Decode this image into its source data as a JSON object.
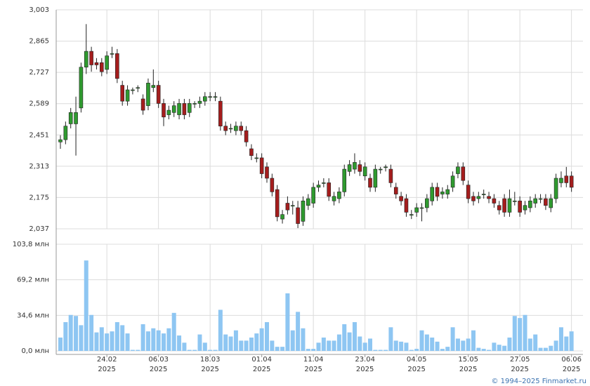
{
  "chart_data": [
    {
      "type": "candlestick",
      "ylim": [
        2.037,
        3.003
      ],
      "yticks": [
        {
          "value": 2.037,
          "label": "2,037"
        },
        {
          "value": 2.175,
          "label": "2,175"
        },
        {
          "value": 2.313,
          "label": "2,313"
        },
        {
          "value": 2.451,
          "label": "2,451"
        },
        {
          "value": 2.589,
          "label": "2,589"
        },
        {
          "value": 2.727,
          "label": "2,727"
        },
        {
          "value": 2.865,
          "label": "2,865"
        },
        {
          "value": 3.003,
          "label": "3,003"
        }
      ],
      "grid": true,
      "up_color": "#2f9a2f",
      "down_color": "#a51d1d",
      "open": [
        2.42,
        2.43,
        2.5,
        2.5,
        2.57,
        2.75,
        2.82,
        2.77,
        2.77,
        2.74,
        2.81,
        2.81,
        2.67,
        2.6,
        2.65,
        2.66,
        2.61,
        2.58,
        2.66,
        2.67,
        2.59,
        2.54,
        2.55,
        2.54,
        2.59,
        2.55,
        2.59,
        2.59,
        2.6,
        2.62,
        2.62,
        2.6,
        2.49,
        2.48,
        2.47,
        2.49,
        2.47,
        2.39,
        2.35,
        2.35,
        2.31,
        2.26,
        2.21,
        2.08,
        2.15,
        2.14,
        2.13,
        2.07,
        2.14,
        2.15,
        2.22,
        2.24,
        2.24,
        2.16,
        2.17,
        2.2,
        2.29,
        2.3,
        2.32,
        2.27,
        2.26,
        2.22,
        2.3,
        2.31,
        2.3,
        2.22,
        2.18,
        2.17,
        2.1,
        2.11,
        2.13,
        2.13,
        2.16,
        2.22,
        2.19,
        2.19,
        2.22,
        2.28,
        2.31,
        2.23,
        2.18,
        2.17,
        2.19,
        2.18,
        2.17,
        2.14,
        2.17,
        2.11,
        2.16,
        2.16,
        2.12,
        2.13,
        2.15,
        2.17,
        2.17,
        2.13,
        2.17,
        2.24,
        2.27,
        2.27
      ],
      "high": [
        2.45,
        2.51,
        2.57,
        2.62,
        2.77,
        2.94,
        2.84,
        2.79,
        2.79,
        2.82,
        2.84,
        2.83,
        2.69,
        2.67,
        2.66,
        2.67,
        2.63,
        2.7,
        2.74,
        2.69,
        2.61,
        2.58,
        2.6,
        2.61,
        2.61,
        2.61,
        2.6,
        2.62,
        2.64,
        2.64,
        2.64,
        2.62,
        2.51,
        2.5,
        2.51,
        2.51,
        2.49,
        2.41,
        2.37,
        2.37,
        2.33,
        2.28,
        2.23,
        2.12,
        2.18,
        2.16,
        2.16,
        2.18,
        2.19,
        2.24,
        2.25,
        2.26,
        2.26,
        2.2,
        2.22,
        2.32,
        2.34,
        2.37,
        2.34,
        2.33,
        2.28,
        2.32,
        2.31,
        2.32,
        2.32,
        2.24,
        2.2,
        2.19,
        2.12,
        2.15,
        2.15,
        2.19,
        2.24,
        2.24,
        2.22,
        2.23,
        2.29,
        2.33,
        2.33,
        2.25,
        2.2,
        2.2,
        2.21,
        2.2,
        2.19,
        2.16,
        2.19,
        2.21,
        2.2,
        2.18,
        2.16,
        2.18,
        2.19,
        2.19,
        2.19,
        2.19,
        2.28,
        2.29,
        2.31,
        2.29
      ],
      "low": [
        2.39,
        2.41,
        2.48,
        2.36,
        2.55,
        2.72,
        2.73,
        2.74,
        2.71,
        2.72,
        2.79,
        2.68,
        2.58,
        2.58,
        2.63,
        2.64,
        2.54,
        2.56,
        2.64,
        2.57,
        2.49,
        2.52,
        2.53,
        2.52,
        2.52,
        2.53,
        2.57,
        2.57,
        2.58,
        2.6,
        2.6,
        2.47,
        2.45,
        2.46,
        2.45,
        2.45,
        2.4,
        2.34,
        2.33,
        2.26,
        2.24,
        2.18,
        2.07,
        2.06,
        2.1,
        2.1,
        2.04,
        2.05,
        2.12,
        2.13,
        2.2,
        2.22,
        2.16,
        2.14,
        2.15,
        2.18,
        2.27,
        2.28,
        2.27,
        2.25,
        2.2,
        2.2,
        2.28,
        2.29,
        2.22,
        2.17,
        2.14,
        2.09,
        2.08,
        2.09,
        2.07,
        2.11,
        2.14,
        2.16,
        2.17,
        2.17,
        2.2,
        2.26,
        2.23,
        2.15,
        2.14,
        2.15,
        2.17,
        2.15,
        2.13,
        2.1,
        2.09,
        2.09,
        2.14,
        2.09,
        2.1,
        2.11,
        2.13,
        2.15,
        2.12,
        2.11,
        2.15,
        2.22,
        2.22,
        2.2
      ],
      "close": [
        2.43,
        2.49,
        2.55,
        2.55,
        2.75,
        2.82,
        2.76,
        2.76,
        2.73,
        2.8,
        2.81,
        2.7,
        2.6,
        2.65,
        2.65,
        2.66,
        2.56,
        2.68,
        2.67,
        2.59,
        2.53,
        2.56,
        2.58,
        2.59,
        2.54,
        2.59,
        2.59,
        2.6,
        2.62,
        2.62,
        2.62,
        2.49,
        2.47,
        2.48,
        2.49,
        2.47,
        2.42,
        2.36,
        2.35,
        2.28,
        2.26,
        2.2,
        2.09,
        2.1,
        2.12,
        2.14,
        2.06,
        2.16,
        2.17,
        2.22,
        2.23,
        2.24,
        2.18,
        2.18,
        2.2,
        2.3,
        2.32,
        2.33,
        2.29,
        2.31,
        2.22,
        2.3,
        2.3,
        2.31,
        2.24,
        2.19,
        2.16,
        2.11,
        2.1,
        2.13,
        2.13,
        2.17,
        2.22,
        2.18,
        2.2,
        2.21,
        2.27,
        2.31,
        2.25,
        2.17,
        2.16,
        2.18,
        2.19,
        2.17,
        2.15,
        2.12,
        2.11,
        2.17,
        2.16,
        2.11,
        2.14,
        2.16,
        2.17,
        2.17,
        2.14,
        2.17,
        2.26,
        2.26,
        2.24,
        2.22
      ]
    },
    {
      "type": "bar",
      "ylim": [
        0,
        103.8
      ],
      "yticks": [
        {
          "value": 0,
          "label": "0,0 млн"
        },
        {
          "value": 34.6,
          "label": "34,6 млн"
        },
        {
          "value": 69.2,
          "label": "69,2 млн"
        },
        {
          "value": 103.8,
          "label": "103,8 млн"
        }
      ],
      "grid": true,
      "color": "#8ec6f2",
      "categories": [
        null,
        null,
        null,
        null,
        null,
        null,
        null,
        null,
        null,
        "24.02 2025",
        null,
        null,
        null,
        null,
        null,
        null,
        null,
        null,
        null,
        "06.03 2025",
        null,
        null,
        null,
        null,
        null,
        null,
        null,
        null,
        null,
        "18.03 2025",
        null,
        null,
        null,
        null,
        null,
        null,
        null,
        null,
        null,
        "01.04 2025",
        null,
        null,
        null,
        null,
        null,
        null,
        null,
        null,
        null,
        "11.04 2025",
        null,
        null,
        null,
        null,
        null,
        null,
        null,
        null,
        null,
        "23.04 2025",
        null,
        null,
        null,
        null,
        null,
        null,
        null,
        null,
        null,
        "04.05 2025",
        null,
        null,
        null,
        null,
        null,
        null,
        null,
        null,
        null,
        "15.05 2025",
        null,
        null,
        null,
        null,
        null,
        null,
        null,
        null,
        null,
        "27.05 2025",
        null,
        null,
        null,
        null,
        null,
        null,
        null,
        null,
        null,
        "06.06 2025"
      ],
      "values": [
        13,
        28,
        35,
        34,
        25,
        88,
        35,
        18,
        23,
        17,
        19,
        28,
        25,
        17,
        1,
        1,
        26,
        19,
        22,
        20,
        17,
        22,
        37,
        15,
        8,
        1,
        1,
        16,
        8,
        1,
        1,
        40,
        16,
        14,
        20,
        10,
        10,
        13,
        17,
        22,
        28,
        10,
        4,
        4,
        56,
        20,
        38,
        22,
        2,
        2,
        8,
        13,
        10,
        10,
        16,
        26,
        18,
        28,
        14,
        8,
        12,
        1,
        1,
        1,
        23,
        10,
        9,
        8,
        1,
        2,
        20,
        16,
        13,
        9,
        2,
        4,
        23,
        12,
        10,
        12,
        20,
        3,
        2,
        1,
        8,
        6,
        5,
        13,
        34,
        32,
        35,
        12,
        16,
        3,
        3,
        5,
        10,
        23,
        14,
        19
      ]
    }
  ],
  "footer": "© 1994–2025 Finmarket.ru"
}
